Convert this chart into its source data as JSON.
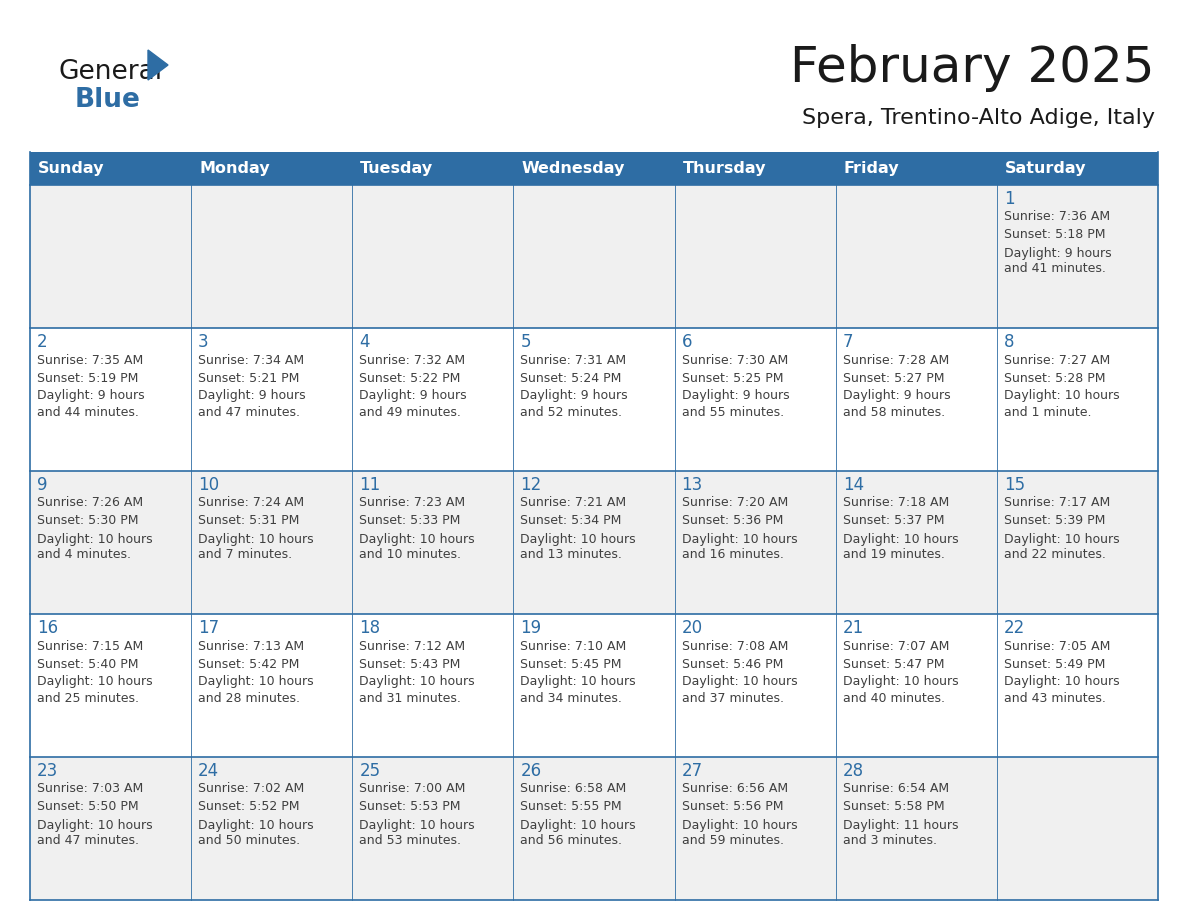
{
  "title": "February 2025",
  "subtitle": "Spera, Trentino-Alto Adige, Italy",
  "header_bg": "#2E6DA4",
  "header_text": "#FFFFFF",
  "row_bg_odd": "#F0F0F0",
  "row_bg_even": "#FFFFFF",
  "border_color": "#2E6DA4",
  "day_names": [
    "Sunday",
    "Monday",
    "Tuesday",
    "Wednesday",
    "Thursday",
    "Friday",
    "Saturday"
  ],
  "logo_general_color": "#1a1a1a",
  "logo_blue_color": "#2E6DA4",
  "title_color": "#1a1a1a",
  "subtitle_color": "#1a1a1a",
  "cell_text_color": "#404040",
  "day_num_color": "#2E6DA4",
  "calendar_data": [
    [
      null,
      null,
      null,
      null,
      null,
      null,
      {
        "day": "1",
        "sunrise": "Sunrise: 7:36 AM",
        "sunset": "Sunset: 5:18 PM",
        "daylight": "Daylight: 9 hours",
        "daylight2": "and 41 minutes."
      }
    ],
    [
      {
        "day": "2",
        "sunrise": "Sunrise: 7:35 AM",
        "sunset": "Sunset: 5:19 PM",
        "daylight": "Daylight: 9 hours",
        "daylight2": "and 44 minutes."
      },
      {
        "day": "3",
        "sunrise": "Sunrise: 7:34 AM",
        "sunset": "Sunset: 5:21 PM",
        "daylight": "Daylight: 9 hours",
        "daylight2": "and 47 minutes."
      },
      {
        "day": "4",
        "sunrise": "Sunrise: 7:32 AM",
        "sunset": "Sunset: 5:22 PM",
        "daylight": "Daylight: 9 hours",
        "daylight2": "and 49 minutes."
      },
      {
        "day": "5",
        "sunrise": "Sunrise: 7:31 AM",
        "sunset": "Sunset: 5:24 PM",
        "daylight": "Daylight: 9 hours",
        "daylight2": "and 52 minutes."
      },
      {
        "day": "6",
        "sunrise": "Sunrise: 7:30 AM",
        "sunset": "Sunset: 5:25 PM",
        "daylight": "Daylight: 9 hours",
        "daylight2": "and 55 minutes."
      },
      {
        "day": "7",
        "sunrise": "Sunrise: 7:28 AM",
        "sunset": "Sunset: 5:27 PM",
        "daylight": "Daylight: 9 hours",
        "daylight2": "and 58 minutes."
      },
      {
        "day": "8",
        "sunrise": "Sunrise: 7:27 AM",
        "sunset": "Sunset: 5:28 PM",
        "daylight": "Daylight: 10 hours",
        "daylight2": "and 1 minute."
      }
    ],
    [
      {
        "day": "9",
        "sunrise": "Sunrise: 7:26 AM",
        "sunset": "Sunset: 5:30 PM",
        "daylight": "Daylight: 10 hours",
        "daylight2": "and 4 minutes."
      },
      {
        "day": "10",
        "sunrise": "Sunrise: 7:24 AM",
        "sunset": "Sunset: 5:31 PM",
        "daylight": "Daylight: 10 hours",
        "daylight2": "and 7 minutes."
      },
      {
        "day": "11",
        "sunrise": "Sunrise: 7:23 AM",
        "sunset": "Sunset: 5:33 PM",
        "daylight": "Daylight: 10 hours",
        "daylight2": "and 10 minutes."
      },
      {
        "day": "12",
        "sunrise": "Sunrise: 7:21 AM",
        "sunset": "Sunset: 5:34 PM",
        "daylight": "Daylight: 10 hours",
        "daylight2": "and 13 minutes."
      },
      {
        "day": "13",
        "sunrise": "Sunrise: 7:20 AM",
        "sunset": "Sunset: 5:36 PM",
        "daylight": "Daylight: 10 hours",
        "daylight2": "and 16 minutes."
      },
      {
        "day": "14",
        "sunrise": "Sunrise: 7:18 AM",
        "sunset": "Sunset: 5:37 PM",
        "daylight": "Daylight: 10 hours",
        "daylight2": "and 19 minutes."
      },
      {
        "day": "15",
        "sunrise": "Sunrise: 7:17 AM",
        "sunset": "Sunset: 5:39 PM",
        "daylight": "Daylight: 10 hours",
        "daylight2": "and 22 minutes."
      }
    ],
    [
      {
        "day": "16",
        "sunrise": "Sunrise: 7:15 AM",
        "sunset": "Sunset: 5:40 PM",
        "daylight": "Daylight: 10 hours",
        "daylight2": "and 25 minutes."
      },
      {
        "day": "17",
        "sunrise": "Sunrise: 7:13 AM",
        "sunset": "Sunset: 5:42 PM",
        "daylight": "Daylight: 10 hours",
        "daylight2": "and 28 minutes."
      },
      {
        "day": "18",
        "sunrise": "Sunrise: 7:12 AM",
        "sunset": "Sunset: 5:43 PM",
        "daylight": "Daylight: 10 hours",
        "daylight2": "and 31 minutes."
      },
      {
        "day": "19",
        "sunrise": "Sunrise: 7:10 AM",
        "sunset": "Sunset: 5:45 PM",
        "daylight": "Daylight: 10 hours",
        "daylight2": "and 34 minutes."
      },
      {
        "day": "20",
        "sunrise": "Sunrise: 7:08 AM",
        "sunset": "Sunset: 5:46 PM",
        "daylight": "Daylight: 10 hours",
        "daylight2": "and 37 minutes."
      },
      {
        "day": "21",
        "sunrise": "Sunrise: 7:07 AM",
        "sunset": "Sunset: 5:47 PM",
        "daylight": "Daylight: 10 hours",
        "daylight2": "and 40 minutes."
      },
      {
        "day": "22",
        "sunrise": "Sunrise: 7:05 AM",
        "sunset": "Sunset: 5:49 PM",
        "daylight": "Daylight: 10 hours",
        "daylight2": "and 43 minutes."
      }
    ],
    [
      {
        "day": "23",
        "sunrise": "Sunrise: 7:03 AM",
        "sunset": "Sunset: 5:50 PM",
        "daylight": "Daylight: 10 hours",
        "daylight2": "and 47 minutes."
      },
      {
        "day": "24",
        "sunrise": "Sunrise: 7:02 AM",
        "sunset": "Sunset: 5:52 PM",
        "daylight": "Daylight: 10 hours",
        "daylight2": "and 50 minutes."
      },
      {
        "day": "25",
        "sunrise": "Sunrise: 7:00 AM",
        "sunset": "Sunset: 5:53 PM",
        "daylight": "Daylight: 10 hours",
        "daylight2": "and 53 minutes."
      },
      {
        "day": "26",
        "sunrise": "Sunrise: 6:58 AM",
        "sunset": "Sunset: 5:55 PM",
        "daylight": "Daylight: 10 hours",
        "daylight2": "and 56 minutes."
      },
      {
        "day": "27",
        "sunrise": "Sunrise: 6:56 AM",
        "sunset": "Sunset: 5:56 PM",
        "daylight": "Daylight: 10 hours",
        "daylight2": "and 59 minutes."
      },
      {
        "day": "28",
        "sunrise": "Sunrise: 6:54 AM",
        "sunset": "Sunset: 5:58 PM",
        "daylight": "Daylight: 11 hours",
        "daylight2": "and 3 minutes."
      },
      null
    ]
  ]
}
